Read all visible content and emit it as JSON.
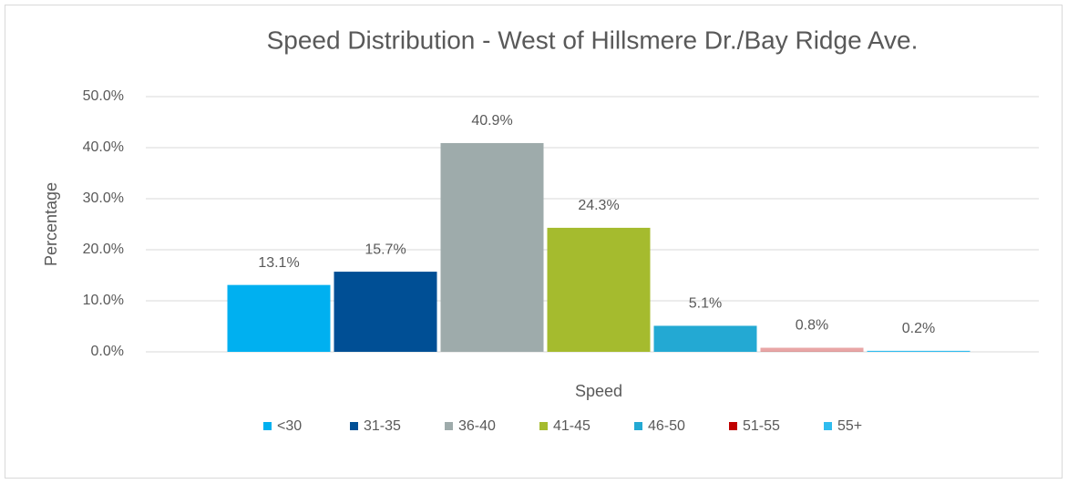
{
  "chart_data": {
    "type": "bar",
    "title": "Speed Distribution - West of Hillsmere Dr./Bay Ridge Ave.",
    "x_label": "Speed",
    "y_label": "Percentage",
    "categories": [
      null
    ],
    "series": [
      {
        "name": "<30",
        "color": "#00b0f0",
        "values": [
          13.1
        ],
        "value_labels": [
          "13.1%"
        ]
      },
      {
        "name": "31-35",
        "color": "#004f95",
        "values": [
          15.7
        ],
        "value_labels": [
          "15.7%"
        ]
      },
      {
        "name": "36-40",
        "color": "#9eabab",
        "values": [
          40.9
        ],
        "value_labels": [
          "40.9%"
        ]
      },
      {
        "name": "41-45",
        "color": "#a5bb2e",
        "values": [
          24.3
        ],
        "value_labels": [
          "24.3%"
        ]
      },
      {
        "name": "46-50",
        "color": "#23a9d3",
        "values": [
          5.1
        ],
        "value_labels": [
          "5.1%"
        ]
      },
      {
        "name": "51-55",
        "color": "#c00000",
        "values": [
          0.8
        ],
        "value_labels": [
          "0.8%"
        ]
      },
      {
        "name": "55+",
        "color": "#2fbcef",
        "values": [
          0.2
        ],
        "value_labels": [
          "0.2%"
        ]
      }
    ],
    "ylim": [
      0,
      50
    ],
    "yticks": [
      {
        "value": 0,
        "label": "0.0%"
      },
      {
        "value": 10,
        "label": "10.0%"
      },
      {
        "value": 20,
        "label": "20.0%"
      },
      {
        "value": 30,
        "label": "30.0%"
      },
      {
        "value": 40,
        "label": "40.0%"
      },
      {
        "value": 50,
        "label": "50.0%"
      }
    ],
    "grid": true,
    "legend": "bottom"
  }
}
